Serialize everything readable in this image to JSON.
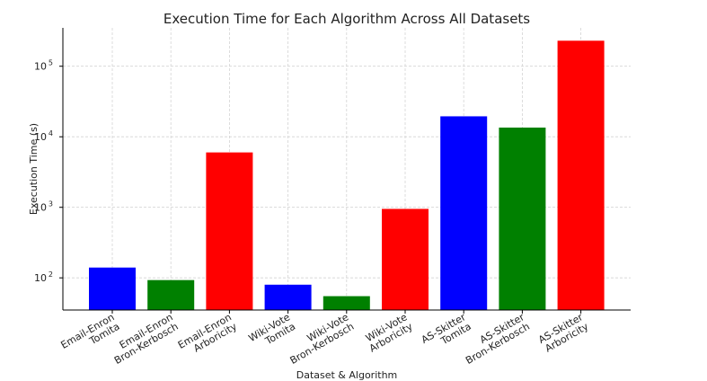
{
  "chart_data": {
    "type": "bar",
    "title": "Execution Time for Each Algorithm Across All Datasets",
    "xlabel": "Dataset & Algorithm",
    "ylabel": "Execution Time (s)",
    "y_scale": "log",
    "ylim": [
      35,
      350000
    ],
    "y_ticks": [
      {
        "value": 100,
        "base": "10",
        "exp": "2"
      },
      {
        "value": 1000,
        "base": "10",
        "exp": "3"
      },
      {
        "value": 10000,
        "base": "10",
        "exp": "4"
      },
      {
        "value": 100000,
        "base": "10",
        "exp": "5"
      }
    ],
    "grid": true,
    "bars": [
      {
        "line1": "Email-Enron",
        "line2": "Tomita",
        "value": 140,
        "color": "#0000ff"
      },
      {
        "line1": "Email-Enron",
        "line2": "Bron-Kerbosch",
        "value": 93,
        "color": "#008000"
      },
      {
        "line1": "Email-Enron",
        "line2": "Arboricity",
        "value": 6000,
        "color": "#ff0000"
      },
      {
        "line1": "Wiki-Vote",
        "line2": "Tomita",
        "value": 80,
        "color": "#0000ff"
      },
      {
        "line1": "Wiki-Vote",
        "line2": "Bron-Kerbosch",
        "value": 55,
        "color": "#008000"
      },
      {
        "line1": "Wiki-Vote",
        "line2": "Arboricity",
        "value": 950,
        "color": "#ff0000"
      },
      {
        "line1": "AS-Skitter",
        "line2": "Tomita",
        "value": 19500,
        "color": "#0000ff"
      },
      {
        "line1": "AS-Skitter",
        "line2": "Bron-Kerbosch",
        "value": 13500,
        "color": "#008000"
      },
      {
        "line1": "AS-Skitter",
        "line2": "Arboricity",
        "value": 230000,
        "color": "#ff0000"
      }
    ]
  }
}
